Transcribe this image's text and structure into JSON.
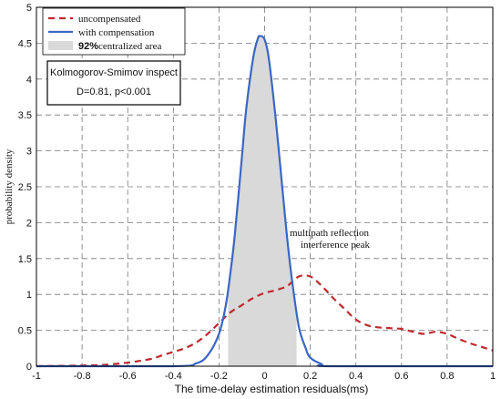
{
  "chart_data": {
    "type": "line",
    "xlabel": "The time-delay estimation residuals(ms)",
    "ylabel": "probability density",
    "xlim": [
      -1,
      1
    ],
    "ylim": [
      0,
      5
    ],
    "xticks": [
      "-1",
      "-0.8",
      "-0.6",
      "-0.4",
      "-0.2",
      "0",
      "0.2",
      "0.4",
      "0.6",
      "0.8",
      "1"
    ],
    "yticks": [
      "0",
      "0.5",
      "1",
      "1.5",
      "2",
      "2.5",
      "3",
      "3.5",
      "4",
      "4.5",
      "5"
    ],
    "grid": true,
    "legend_position": "top-left",
    "series": [
      {
        "name": "uncompensated",
        "style": "dashed",
        "color": "#c0282d",
        "x": [
          -1.0,
          -0.8,
          -0.7,
          -0.6,
          -0.5,
          -0.45,
          -0.4,
          -0.35,
          -0.3,
          -0.25,
          -0.2,
          -0.15,
          -0.1,
          -0.05,
          0.0,
          0.05,
          0.1,
          0.15,
          0.2,
          0.25,
          0.3,
          0.35,
          0.4,
          0.45,
          0.5,
          0.55,
          0.6,
          0.65,
          0.7,
          0.75,
          0.8,
          0.85,
          0.9,
          0.95,
          1.0
        ],
        "y": [
          0.0,
          0.01,
          0.02,
          0.05,
          0.1,
          0.15,
          0.2,
          0.25,
          0.33,
          0.45,
          0.6,
          0.75,
          0.85,
          0.95,
          1.02,
          1.06,
          1.12,
          1.25,
          1.25,
          1.12,
          0.95,
          0.8,
          0.65,
          0.57,
          0.54,
          0.53,
          0.52,
          0.48,
          0.45,
          0.48,
          0.45,
          0.38,
          0.32,
          0.27,
          0.22
        ]
      },
      {
        "name": "with compensation",
        "style": "solid",
        "color": "#3a67c4",
        "x": [
          -1.0,
          -0.4,
          -0.3,
          -0.25,
          -0.2,
          -0.17,
          -0.15,
          -0.13,
          -0.1,
          -0.08,
          -0.05,
          -0.03,
          -0.02,
          0.0,
          0.02,
          0.05,
          0.08,
          0.1,
          0.12,
          0.15,
          0.18,
          0.2,
          0.25,
          0.3,
          1.0
        ],
        "y": [
          0.0,
          0.0,
          0.04,
          0.15,
          0.45,
          0.85,
          1.3,
          1.85,
          2.9,
          3.6,
          4.3,
          4.56,
          4.6,
          4.55,
          4.25,
          3.4,
          2.4,
          1.75,
          1.2,
          0.55,
          0.25,
          0.12,
          0.03,
          0.0,
          0.0
        ]
      }
    ],
    "shaded_region": {
      "name": "92%centralized area",
      "legend_bold": "92%",
      "legend_rest": "centralized area",
      "x_range": [
        -0.16,
        0.14
      ],
      "color": "#d9d9d9"
    },
    "annotations": [
      {
        "text_line1": "multipath reflection",
        "text_line2": "interference peak",
        "x": 0.15,
        "y": 1.9
      },
      {
        "title": "Kolmogorov-Smimov inspect",
        "stat": "D=0.81, p<0.001"
      }
    ]
  }
}
